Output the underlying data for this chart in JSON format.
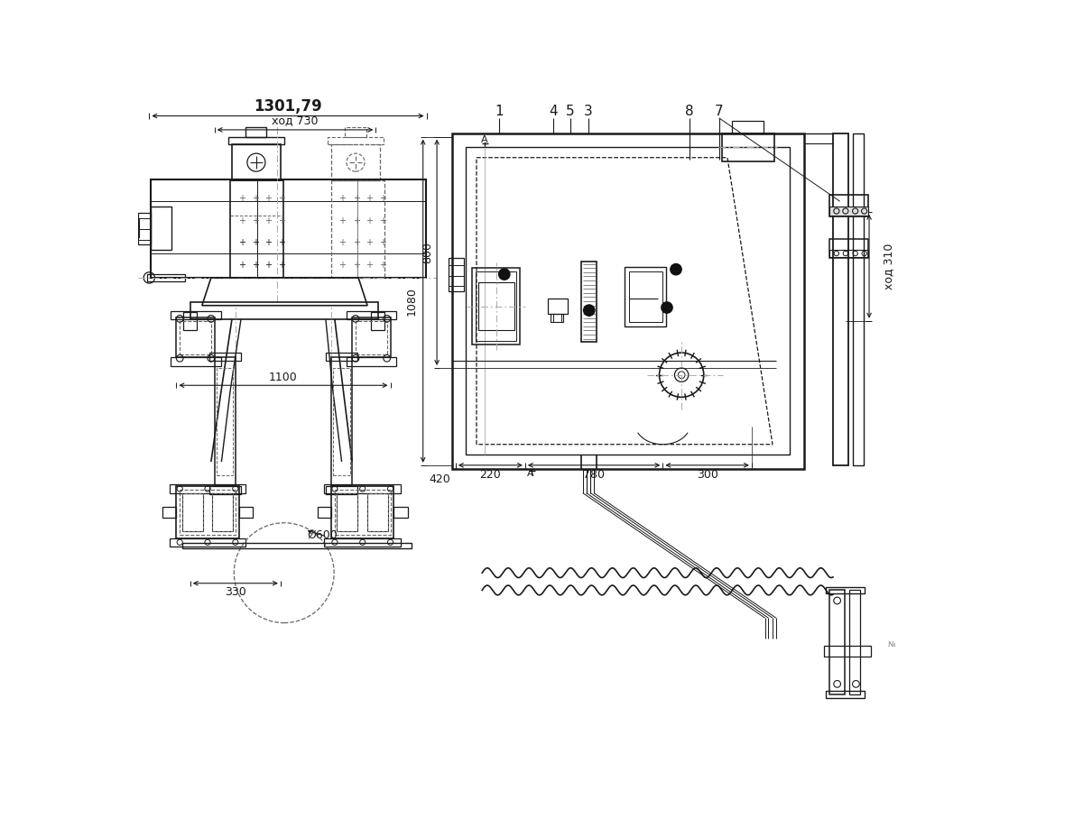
{
  "bg_color": "#ffffff",
  "line_color": "#1a1a1a",
  "dash_color": "#666666",
  "dim_color": "#1a1a1a",
  "dim_1301": "1301,79",
  "dim_730": "ход 730",
  "dim_1100": "1100",
  "dim_600": "Ø600",
  "dim_330": "330",
  "dim_800": "800",
  "dim_1080": "1080",
  "dim_220": "220",
  "dim_780": "780",
  "dim_300": "300",
  "dim_420": "420",
  "dim_310": "ход 310",
  "numbers_top": [
    "1",
    "4",
    "5",
    "3",
    "8",
    "7"
  ],
  "numbers_top_x": [
    519,
    598,
    622,
    648,
    793,
    836
  ],
  "label_A": "А"
}
